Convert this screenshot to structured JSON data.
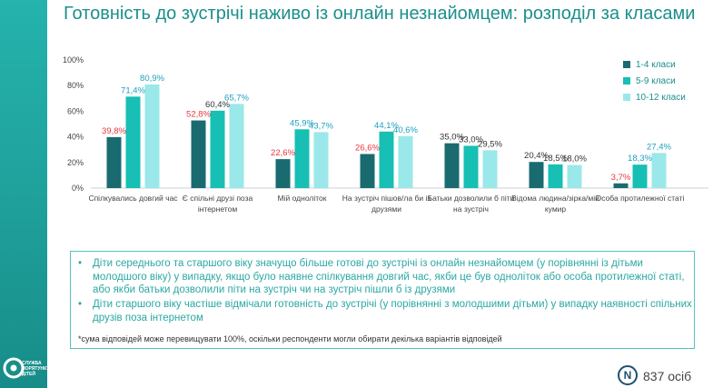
{
  "title": "Готовність до зустрічі наживо із онлайн незнайомцем: розподіл за класами",
  "logo": {
    "text": "СЛУЖБА ПОРЯТУНКУ ДІТЕЙ"
  },
  "chart_data": {
    "type": "bar",
    "title": "",
    "xlabel": "",
    "ylabel": "",
    "ylim": [
      0,
      100
    ],
    "yticks": [
      "0%",
      "20%",
      "40%",
      "60%",
      "80%",
      "100%"
    ],
    "grid": false,
    "legend_position": "top-right",
    "categories": [
      [
        "Спілкувались довгий час"
      ],
      [
        "Є спільні друзі поза",
        "інтернетом"
      ],
      [
        "Мій одноліток"
      ],
      [
        "На зустріч пішов/ла би із",
        "друзями"
      ],
      [
        "Батьки дозволили б піти",
        "на зустріч"
      ],
      [
        "Відома людина/зірка/мій",
        "кумир"
      ],
      [
        "Особа протилежної статі"
      ]
    ],
    "series": [
      {
        "name": "1-4 класи",
        "color": "#1a6b70",
        "values": [
          39.8,
          52.8,
          22.6,
          26.6,
          35.0,
          20.4,
          3.7
        ],
        "labels": [
          "39,8%",
          "52,8%",
          "22,6%",
          "26,6%",
          "35,0%",
          "20,4%",
          "3,7%"
        ],
        "label_colors": [
          "#e8383d",
          "#e8383d",
          "#e8383d",
          "#e8383d",
          "#333333",
          "#333333",
          "#e8383d"
        ]
      },
      {
        "name": "5-9 класи",
        "color": "#17bfb4",
        "values": [
          71.4,
          60.4,
          45.9,
          44.1,
          33.0,
          18.5,
          18.3
        ],
        "labels": [
          "71,4%",
          "60,4%",
          "45,9%",
          "44,1%",
          "33,0%",
          "18,5%",
          "18,3%"
        ],
        "label_colors": [
          "#1f9fbf",
          "#333333",
          "#1f9fbf",
          "#1f9fbf",
          "#333333",
          "#333333",
          "#1f9fbf"
        ]
      },
      {
        "name": "10-12 класи",
        "color": "#9ae8ea",
        "values": [
          80.9,
          65.7,
          43.7,
          40.6,
          29.5,
          18.0,
          27.4
        ],
        "labels": [
          "80,9%",
          "65,7%",
          "43,7%",
          "40,6%",
          "29,5%",
          "18,0%",
          "27,4%"
        ],
        "label_colors": [
          "#1f9fbf",
          "#1f9fbf",
          "#1f9fbf",
          "#1f9fbf",
          "#333333",
          "#333333",
          "#1f9fbf"
        ]
      }
    ]
  },
  "notes": {
    "bullets": [
      "Діти середнього та старшого віку значущо більше готові до зустрічі із онлайн незнайомцем (у порівнянні із дітьми молодшого віку) у випадку, якщо було наявне спілкування довгий час, якби це був однолiток або особа протилежної статі, або якби батьки дозволили піти на зустріч чи на зустріч пішли б із друзями",
      "Діти старшого віку частіше відмічали готовність до зустрічі (у порівнянні з молодшими дітьми) у випадку наявності спільних друзів поза інтернетом"
    ],
    "footnote": "*сума відповідей може перевищувати 100%, оскільки респонденти могли обирати декілька варіантів відповідей"
  },
  "sample": {
    "badge": "N",
    "count": "837 осіб"
  }
}
